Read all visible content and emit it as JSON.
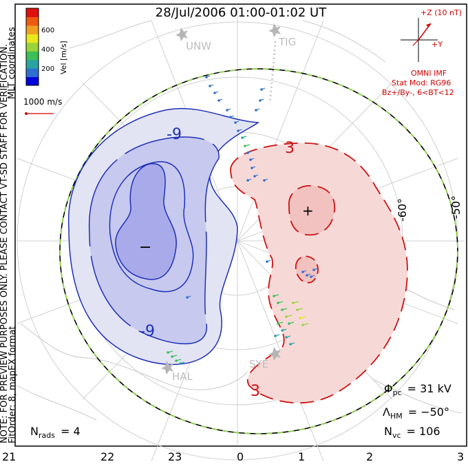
{
  "title": "28/Jul/2006 01:00-01:02 UT",
  "side_text": {
    "coord_system": "MLT coordinates",
    "notice": "NOTE: FOR PREVIEW PURPOSES ONLY. PLEASE CONTACT VT-SD STAFF FOR VERIFICATION.",
    "fit_order": "FitOrder: 8, mapEX format"
  },
  "color_scale": {
    "label": "Vel [m/s]",
    "ticks": [
      "600",
      "400",
      "200"
    ],
    "colors": [
      "#0000dd",
      "#2e6fd0",
      "#2aa3a3",
      "#3bbf56",
      "#9ad33a",
      "#e8e81a",
      "#f0a020",
      "#ee5a10",
      "#e01010"
    ]
  },
  "reference_vector": {
    "label": "1000 m/s",
    "color": "#d00000"
  },
  "imf": {
    "z_label": "+Z (10 nT)",
    "y_label": "+Y",
    "source": "OMNI IMF",
    "model": "Stat Mod: RG96",
    "conditions": "Bz+/By-, 6<BT<12",
    "color": "#d00000"
  },
  "stations": [
    "UNW",
    "TIG",
    "HAL",
    "SYE"
  ],
  "latitude_labels": [
    "-60°",
    "-50°"
  ],
  "contours": {
    "negative_label": "-9",
    "positive_label": "3",
    "min_marker": "−",
    "max_marker": "+",
    "negative_color": "#1d2fb8",
    "positive_color": "#cc1010",
    "negative_fill": "#e3e4f3",
    "negative_fill_mid": "#c7c9ee",
    "negative_fill_inner": "#a9aaea",
    "positive_fill": "#f6d9d7",
    "positive_fill_inner": "#f1c2c0"
  },
  "boundary_color": "#8fd34a",
  "stats": {
    "phi_pc_label": "Φ",
    "phi_pc_sub": "pc",
    "phi_pc_value": "= 31 kV",
    "lambda_label": "Λ",
    "lambda_sub": "HM",
    "lambda_value": "= −50°",
    "nvc_label": "N",
    "nvc_sub": "vc",
    "nvc_value": "= 106",
    "nrads_label": "N",
    "nrads_sub": "rads",
    "nrads_value": "= 4"
  },
  "mlt_ticks": [
    "21",
    "22",
    "23",
    "0",
    "1",
    "2",
    "3"
  ]
}
